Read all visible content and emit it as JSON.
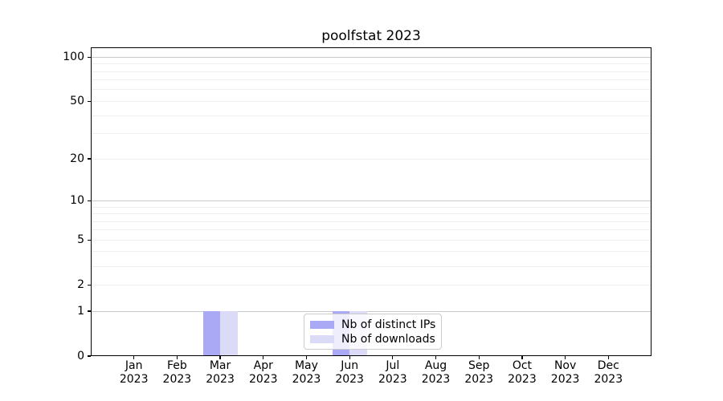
{
  "chart_data": {
    "type": "bar",
    "title": "poolfstat 2023",
    "categories": [
      "Jan 2023",
      "Feb 2023",
      "Mar 2023",
      "Apr 2023",
      "May 2023",
      "Jun 2023",
      "Jul 2023",
      "Aug 2023",
      "Sep 2023",
      "Oct 2023",
      "Nov 2023",
      "Dec 2023"
    ],
    "series": [
      {
        "name": "Nb of distinct IPs",
        "color": "#a9a9f5",
        "values": [
          0,
          0,
          1,
          0,
          0,
          1,
          0,
          0,
          0,
          0,
          0,
          0
        ]
      },
      {
        "name": "Nb of downloads",
        "color": "#dbdbf8",
        "values": [
          0,
          0,
          1,
          0,
          0,
          1,
          0,
          0,
          0,
          0,
          0,
          0
        ]
      }
    ],
    "y_axis": {
      "scale": "log10(1+y)",
      "ylim": [
        0,
        116.5
      ],
      "tick_values": [
        0,
        1,
        2,
        5,
        10,
        20,
        50,
        100
      ],
      "tick_labels": [
        "0",
        "1",
        "2",
        "5",
        "10",
        "20",
        "50",
        "100"
      ],
      "major_grid_values": [
        1,
        10,
        100
      ],
      "minor_grid_values": [
        2,
        3,
        4,
        5,
        6,
        7,
        8,
        9,
        20,
        30,
        40,
        50,
        60,
        70,
        80,
        90
      ]
    },
    "legend_position": "lower center",
    "grid": "on",
    "colors": {
      "axis": "#000000",
      "major_grid": "#c9c9c9",
      "minor_grid": "#efefef",
      "background": "#ffffff"
    }
  }
}
